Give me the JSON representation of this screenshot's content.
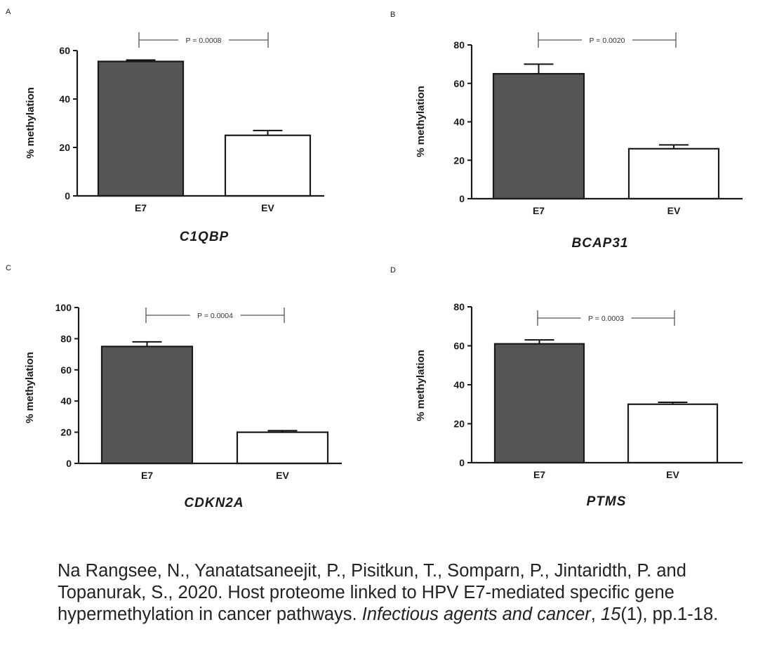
{
  "chart_data": [
    {
      "type": "bar",
      "panel": "A",
      "title": "C1QBP",
      "ylabel": "% methylation",
      "categories": [
        "E7",
        "EV"
      ],
      "values": [
        55.5,
        25
      ],
      "errors": [
        0.6,
        2
      ],
      "bar_colors": [
        "#555555",
        "#ffffff"
      ],
      "ylim": [
        0,
        60
      ],
      "yticks": [
        0,
        20,
        40,
        60
      ],
      "pvalue": "P = 0.0008"
    },
    {
      "type": "bar",
      "panel": "B",
      "title": "BCAP31",
      "ylabel": "% methylation",
      "categories": [
        "E7",
        "EV"
      ],
      "values": [
        65,
        26
      ],
      "errors": [
        5,
        2
      ],
      "bar_colors": [
        "#555555",
        "#ffffff"
      ],
      "ylim": [
        0,
        80
      ],
      "yticks": [
        0,
        20,
        40,
        60,
        80
      ],
      "pvalue": "P = 0.0020"
    },
    {
      "type": "bar",
      "panel": "C",
      "title": "CDKN2A",
      "ylabel": "% methylation",
      "categories": [
        "E7",
        "EV"
      ],
      "values": [
        75,
        20
      ],
      "errors": [
        3,
        1
      ],
      "bar_colors": [
        "#555555",
        "#ffffff"
      ],
      "ylim": [
        0,
        100
      ],
      "yticks": [
        0,
        20,
        40,
        60,
        80,
        100
      ],
      "pvalue": "P = 0.0004"
    },
    {
      "type": "bar",
      "panel": "D",
      "title": "PTMS",
      "ylabel": "% methylation",
      "categories": [
        "E7",
        "EV"
      ],
      "values": [
        61,
        30
      ],
      "errors": [
        2,
        1
      ],
      "bar_colors": [
        "#555555",
        "#ffffff"
      ],
      "ylim": [
        0,
        80
      ],
      "yticks": [
        0,
        20,
        40,
        60,
        80
      ],
      "pvalue": "P = 0.0003"
    }
  ],
  "citation": {
    "authors": "Na Rangsee, N., Yanatatsaneejit, P., Pisitkun, T., Somparn, P., Jintaridth, P. and Topanurak, S., 2020. Host proteome linked to HPV E7-mediated specific gene hypermethylation in cancer pathways.",
    "journal": "Infectious agents and cancer",
    "volume": "15",
    "rest": "(1), pp.1-18."
  }
}
